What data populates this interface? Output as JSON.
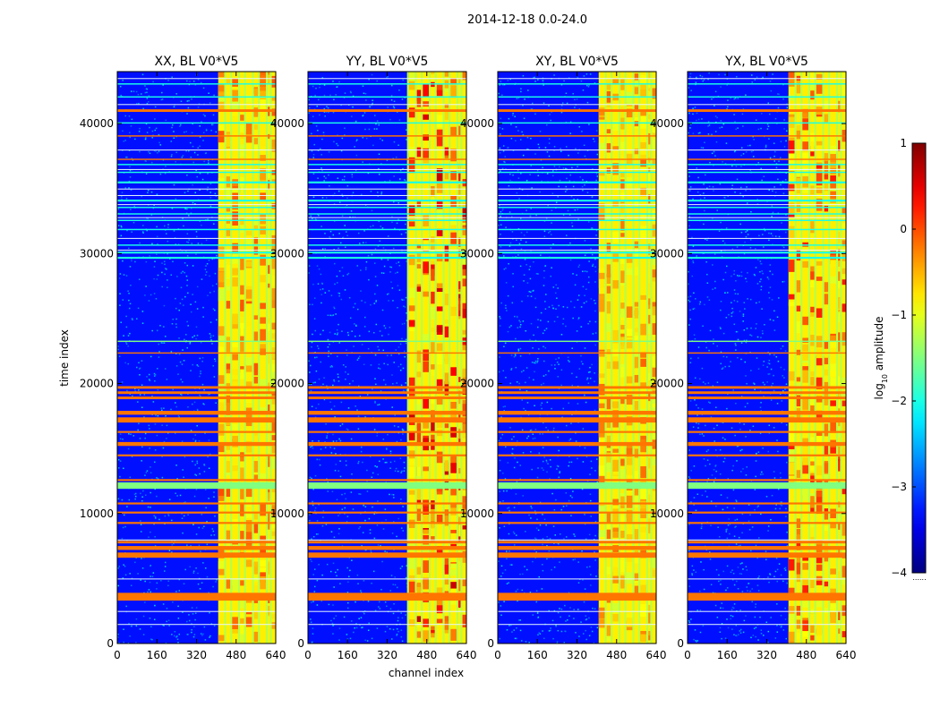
{
  "chart_data": {
    "type": "heatmap",
    "suptitle": "2014-12-18 0.0-24.0",
    "xlabel": "channel index",
    "ylabel": "time index",
    "xlim": [
      0,
      640
    ],
    "ylim": [
      0,
      44000
    ],
    "xticks": [
      0,
      160,
      320,
      480,
      640
    ],
    "yticks": [
      0,
      10000,
      20000,
      30000,
      40000
    ],
    "xtick_labels": [
      "0",
      "160",
      "320",
      "480",
      "640"
    ],
    "ytick_labels": [
      "0",
      "10000",
      "20000",
      "30000",
      "40000"
    ],
    "panels": [
      {
        "title": "XX, BL V0*V5",
        "onset_channel": 408,
        "top_rfi_level": 0.72
      },
      {
        "title": "YY, BL V0*V5",
        "onset_channel": 400,
        "top_rfi_level": 0.85
      },
      {
        "title": "XY, BL V0*V5",
        "onset_channel": 408,
        "top_rfi_level": 0.7
      },
      {
        "title": "YX, BL V0*V5",
        "onset_channel": 408,
        "top_rfi_level": 0.78
      }
    ],
    "colorbar": {
      "label": "log10 amplitude",
      "label_main": "log",
      "label_sub": "10",
      "label_rest": " amplitude",
      "range": [
        -4,
        1
      ],
      "ticks": [
        1,
        0,
        -1,
        -2,
        -3,
        -4
      ],
      "tick_labels": [
        "1",
        "0",
        "−1",
        "−2",
        "−3",
        "−4"
      ],
      "colormap": "jet"
    },
    "band_columns": [
      {
        "start": 408,
        "end": 432
      },
      {
        "start": 440,
        "end": 456
      },
      {
        "start": 464,
        "end": 488
      },
      {
        "start": 496,
        "end": 512
      },
      {
        "start": 520,
        "end": 544
      },
      {
        "start": 552,
        "end": 568
      },
      {
        "start": 576,
        "end": 600
      },
      {
        "start": 608,
        "end": 616
      },
      {
        "start": 624,
        "end": 640
      }
    ],
    "flagged_time_rows": [
      {
        "start": 3300,
        "end": 3900,
        "kind": "orange"
      },
      {
        "start": 6600,
        "end": 7000,
        "kind": "orange"
      },
      {
        "start": 7200,
        "end": 7500,
        "kind": "orange"
      },
      {
        "start": 7700,
        "end": 7900,
        "kind": "orange"
      },
      {
        "start": 9200,
        "end": 9350,
        "kind": "orange"
      },
      {
        "start": 10000,
        "end": 10150,
        "kind": "orange"
      },
      {
        "start": 10700,
        "end": 10850,
        "kind": "orange"
      },
      {
        "start": 11900,
        "end": 12400,
        "kind": "green"
      },
      {
        "start": 12500,
        "end": 12650,
        "kind": "orange"
      },
      {
        "start": 14400,
        "end": 14550,
        "kind": "orange"
      },
      {
        "start": 15200,
        "end": 15500,
        "kind": "orange"
      },
      {
        "start": 16200,
        "end": 16350,
        "kind": "orange"
      },
      {
        "start": 17000,
        "end": 17400,
        "kind": "orange"
      },
      {
        "start": 17600,
        "end": 17900,
        "kind": "orange"
      },
      {
        "start": 18800,
        "end": 19000,
        "kind": "orange"
      },
      {
        "start": 19200,
        "end": 19400,
        "kind": "orange"
      },
      {
        "start": 19600,
        "end": 19800,
        "kind": "orange"
      },
      {
        "start": 22300,
        "end": 22400,
        "kind": "orange"
      },
      {
        "start": 23200,
        "end": 23300,
        "kind": "green"
      },
      {
        "start": 29600,
        "end": 29750,
        "kind": "cyan"
      },
      {
        "start": 30000,
        "end": 30150,
        "kind": "cyan"
      },
      {
        "start": 30600,
        "end": 30700,
        "kind": "cyan"
      },
      {
        "start": 31800,
        "end": 31900,
        "kind": "cyan"
      },
      {
        "start": 32500,
        "end": 32600,
        "kind": "cyan"
      },
      {
        "start": 33000,
        "end": 33100,
        "kind": "cyan"
      },
      {
        "start": 33500,
        "end": 33600,
        "kind": "cyan"
      },
      {
        "start": 34000,
        "end": 34150,
        "kind": "cyan"
      },
      {
        "start": 35400,
        "end": 35550,
        "kind": "cyan"
      },
      {
        "start": 36200,
        "end": 36300,
        "kind": "cyan"
      },
      {
        "start": 36800,
        "end": 36900,
        "kind": "cyan"
      },
      {
        "start": 37200,
        "end": 37300,
        "kind": "orange"
      },
      {
        "start": 39000,
        "end": 39100,
        "kind": "orange"
      },
      {
        "start": 40000,
        "end": 40100,
        "kind": "cyan"
      },
      {
        "start": 40900,
        "end": 41100,
        "kind": "orange"
      },
      {
        "start": 42000,
        "end": 42100,
        "kind": "cyan"
      },
      {
        "start": 43000,
        "end": 43100,
        "kind": "cyan"
      }
    ]
  }
}
